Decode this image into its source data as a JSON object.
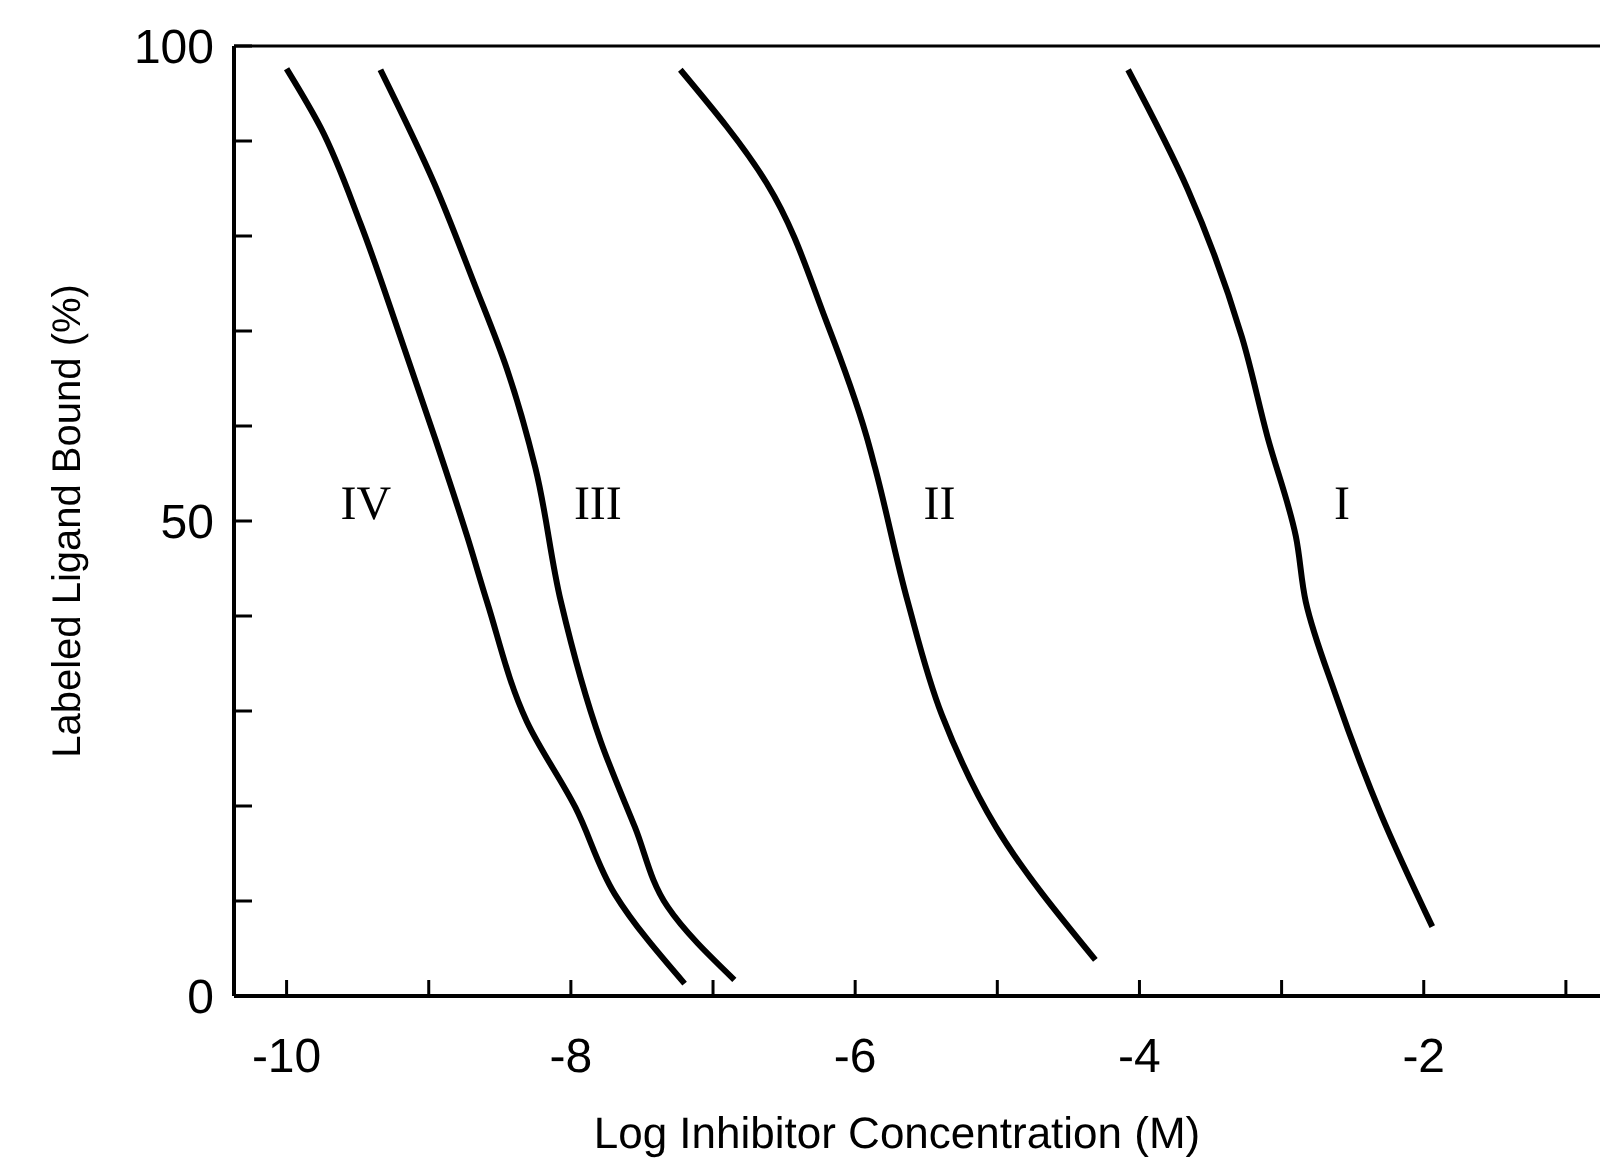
{
  "chart_data": {
    "type": "line",
    "xlabel": "Log Inhibitor Concentration (M)",
    "ylabel": "Labeled Ligand Bound (%)",
    "xlim": [
      -10.37,
      -0.76
    ],
    "ylim": [
      0,
      100
    ],
    "xticks": [
      -10,
      {
        "value": -9,
        "label": null
      },
      -8,
      {
        "value": -7,
        "label": null
      },
      -6,
      {
        "value": -5,
        "label": null
      },
      -4,
      {
        "value": -3,
        "label": null
      },
      -2,
      {
        "value": -1,
        "label": null
      }
    ],
    "yticks": [
      0,
      {
        "value": 10,
        "label": null
      },
      {
        "value": 20,
        "label": null
      },
      {
        "value": 30,
        "label": null
      },
      {
        "value": 40,
        "label": null
      },
      50,
      {
        "value": 60,
        "label": null
      },
      {
        "value": 70,
        "label": null
      },
      {
        "value": 80,
        "label": null
      },
      {
        "value": 90,
        "label": null
      },
      100
    ],
    "grid": false,
    "marker": "none",
    "line_style": "solid",
    "series": [
      {
        "name": "IV",
        "color": "#000000",
        "x": [
          -10.0,
          -9.76,
          -9.48,
          -9.2,
          -8.96,
          -8.73,
          -8.59,
          -8.31,
          -7.97,
          -7.69,
          -7.2
        ],
        "values": [
          97.6,
          91.4,
          81.3,
          69.4,
          58.9,
          48.4,
          41.5,
          28.9,
          19.9,
          10.7,
          1.3
        ]
      },
      {
        "name": "III",
        "color": "#000000",
        "x": [
          -9.34,
          -8.96,
          -8.68,
          -8.45,
          -8.25,
          -8.07,
          -7.79,
          -7.55,
          -7.32,
          -6.85
        ],
        "values": [
          97.5,
          85.5,
          75,
          66,
          55.6,
          41.5,
          26.8,
          17.8,
          9.4,
          1.7
        ]
      },
      {
        "name": "II",
        "color": "#000000",
        "x": [
          -7.23,
          -6.62,
          -6.2,
          -5.92,
          -5.86,
          -5.63,
          -5.39,
          -5.01,
          -4.31
        ],
        "values": [
          97.5,
          85.5,
          70.9,
          58.9,
          55.6,
          41.5,
          29.6,
          17.8,
          3.8
        ]
      },
      {
        "name": "I",
        "color": "#000000",
        "x": [
          -4.08,
          -3.66,
          -3.28,
          -3.1,
          -2.9,
          -2.83,
          -2.62,
          -2.3,
          -1.94
        ],
        "values": [
          97.5,
          84.9,
          69.4,
          58.9,
          48.4,
          41.5,
          31.7,
          19.1,
          7.3
        ]
      }
    ]
  }
}
